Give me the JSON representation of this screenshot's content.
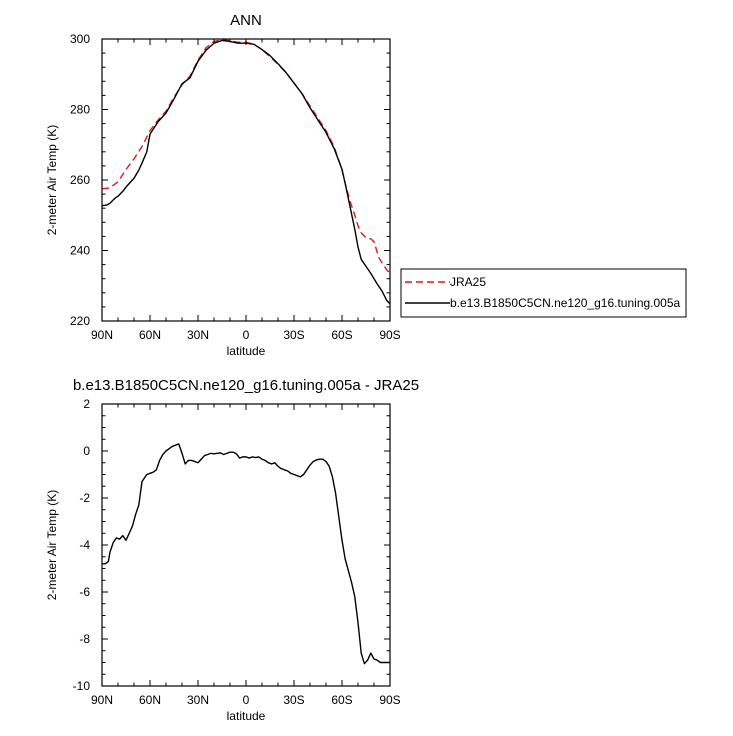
{
  "chart_data": [
    {
      "type": "line",
      "title": "ANN",
      "xlabel": "latitude",
      "ylabel": "2-meter Air Temp (K)",
      "xlim": [
        90,
        -90
      ],
      "ylim": [
        220,
        300
      ],
      "x_ticks": [
        {
          "value": 90,
          "label": "90N"
        },
        {
          "value": 60,
          "label": "60N"
        },
        {
          "value": 30,
          "label": "30N"
        },
        {
          "value": 0,
          "label": "0"
        },
        {
          "value": -30,
          "label": "30S"
        },
        {
          "value": -60,
          "label": "60S"
        },
        {
          "value": -90,
          "label": "90S"
        }
      ],
      "y_ticks": [
        220,
        240,
        260,
        280,
        300
      ],
      "legend": {
        "placement": "right, outside plot",
        "entries": [
          "JRA25",
          "b.e13.B1850C5CN.ne120_g16.tuning.005a"
        ]
      },
      "series": [
        {
          "name": "JRA25",
          "color": "#e01a1a",
          "dash": "dashed",
          "x": [
            90,
            85,
            80,
            75,
            70,
            65,
            60,
            55,
            50,
            45,
            40,
            35,
            30,
            25,
            20,
            15,
            10,
            5,
            0,
            -5,
            -10,
            -15,
            -20,
            -25,
            -30,
            -35,
            -40,
            -45,
            -50,
            -55,
            -60,
            -62,
            -65,
            -68,
            -70,
            -72,
            -75,
            -78,
            -80,
            -83,
            -85,
            -88,
            -90
          ],
          "values": [
            257.5,
            257.8,
            259.5,
            263.0,
            266.0,
            269.5,
            274.0,
            277.0,
            279.5,
            283.5,
            287.0,
            289.5,
            294.0,
            297.5,
            299.3,
            299.8,
            299.5,
            299.1,
            299.1,
            298.5,
            297.0,
            295.0,
            292.8,
            290.5,
            287.5,
            284.5,
            281.0,
            277.5,
            274.0,
            269.5,
            263.0,
            259.0,
            254.0,
            250.0,
            247.0,
            245.0,
            243.6,
            243.3,
            242.5,
            238.0,
            236.5,
            234.5,
            233.5
          ]
        },
        {
          "name": "b.e13.B1850C5CN.ne120_g16.tuning.005a",
          "color": "#000000",
          "dash": "solid",
          "x": [
            90,
            87,
            85,
            82,
            80,
            77,
            75,
            72,
            70,
            67,
            65,
            62,
            60,
            55,
            50,
            45,
            40,
            35,
            30,
            25,
            20,
            15,
            10,
            5,
            0,
            -5,
            -10,
            -15,
            -20,
            -25,
            -30,
            -35,
            -40,
            -45,
            -50,
            -55,
            -60,
            -62,
            -65,
            -68,
            -70,
            -72,
            -75,
            -78,
            -80,
            -82,
            -85,
            -88,
            -90
          ],
          "values": [
            252.7,
            252.9,
            253.4,
            254.8,
            255.4,
            256.8,
            258.0,
            259.5,
            260.5,
            262.8,
            264.8,
            268.0,
            273.0,
            276.5,
            279.0,
            283.0,
            287.3,
            289.0,
            293.7,
            296.8,
            298.8,
            299.6,
            299.3,
            298.8,
            298.8,
            298.5,
            297.0,
            295.3,
            293.0,
            290.5,
            287.5,
            284.5,
            280.5,
            277.0,
            273.5,
            269.0,
            263.0,
            259.0,
            252.5,
            246.0,
            241.0,
            237.5,
            235.5,
            233.5,
            232.0,
            230.5,
            228.5,
            225.8,
            224.9
          ]
        }
      ]
    },
    {
      "type": "line",
      "title": "b.e13.B1850C5CN.ne120_g16.tuning.005a - JRA25",
      "xlabel": "latitude",
      "ylabel": "2-meter Air Temp (K)",
      "xlim": [
        90,
        -90
      ],
      "ylim": [
        -10,
        2
      ],
      "x_ticks": [
        {
          "value": 90,
          "label": "90N"
        },
        {
          "value": 60,
          "label": "60N"
        },
        {
          "value": 30,
          "label": "30N"
        },
        {
          "value": 0,
          "label": "0"
        },
        {
          "value": -30,
          "label": "30S"
        },
        {
          "value": -60,
          "label": "60S"
        },
        {
          "value": -90,
          "label": "90S"
        }
      ],
      "y_ticks": [
        2,
        0,
        -2,
        -4,
        -6,
        -8,
        -10
      ],
      "series": [
        {
          "color": "#000000",
          "dash": "solid",
          "x": [
            90,
            88,
            86,
            85,
            83,
            81,
            79,
            77,
            75,
            73,
            71,
            69,
            67,
            65,
            62,
            60,
            58,
            56,
            54,
            52,
            50,
            48,
            46,
            44,
            42,
            40,
            38,
            36,
            34,
            32,
            30,
            28,
            26,
            24,
            22,
            20,
            18,
            16,
            14,
            12,
            10,
            8,
            6,
            4,
            2,
            0,
            -2,
            -4,
            -6,
            -8,
            -10,
            -12,
            -14,
            -16,
            -18,
            -20,
            -22,
            -24,
            -26,
            -28,
            -30,
            -32,
            -34,
            -36,
            -38,
            -40,
            -42,
            -44,
            -46,
            -48,
            -50,
            -52,
            -54,
            -56,
            -58,
            -60,
            -62,
            -64,
            -66,
            -68,
            -70,
            -72,
            -74,
            -76,
            -78,
            -80,
            -82,
            -84,
            -85,
            -86,
            -88,
            -90
          ],
          "values": [
            -4.8,
            -4.8,
            -4.7,
            -4.3,
            -3.9,
            -3.7,
            -3.75,
            -3.6,
            -3.8,
            -3.5,
            -3.2,
            -2.7,
            -2.3,
            -1.3,
            -1.0,
            -0.95,
            -0.9,
            -0.8,
            -0.4,
            -0.15,
            0.0,
            0.1,
            0.2,
            0.25,
            0.3,
            -0.1,
            -0.55,
            -0.4,
            -0.4,
            -0.45,
            -0.5,
            -0.35,
            -0.2,
            -0.15,
            -0.1,
            -0.12,
            -0.1,
            -0.08,
            -0.15,
            -0.1,
            -0.05,
            -0.05,
            -0.12,
            -0.3,
            -0.25,
            -0.25,
            -0.3,
            -0.25,
            -0.28,
            -0.25,
            -0.35,
            -0.4,
            -0.5,
            -0.55,
            -0.5,
            -0.65,
            -0.75,
            -0.8,
            -0.85,
            -0.95,
            -1.0,
            -1.05,
            -1.1,
            -1.0,
            -0.8,
            -0.6,
            -0.45,
            -0.38,
            -0.35,
            -0.35,
            -0.45,
            -0.65,
            -1.1,
            -1.8,
            -2.8,
            -3.8,
            -4.6,
            -5.1,
            -5.6,
            -6.2,
            -7.3,
            -8.6,
            -9.05,
            -8.9,
            -8.6,
            -8.85,
            -8.9,
            -9.0,
            -9.0,
            -9.0,
            -9.0,
            -9.0
          ]
        }
      ]
    }
  ]
}
